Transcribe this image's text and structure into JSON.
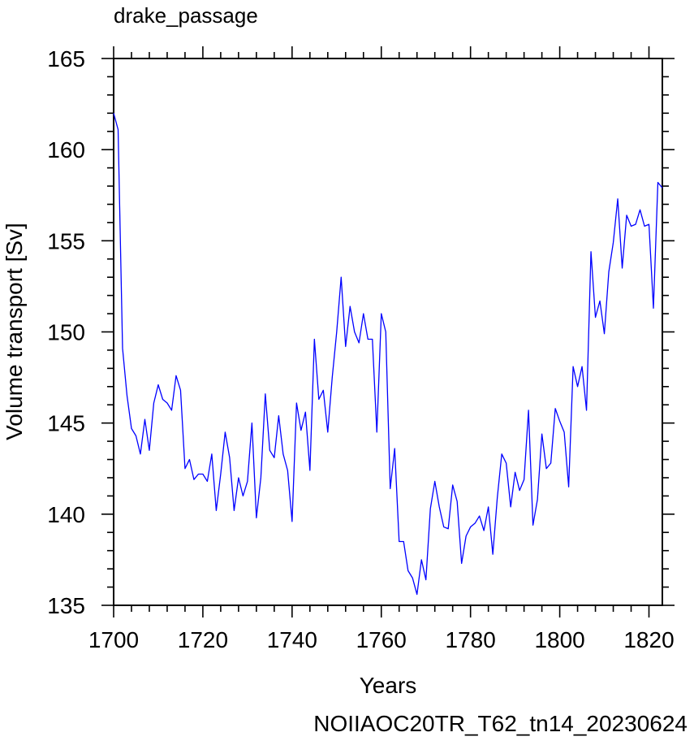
{
  "chart_data": {
    "type": "line",
    "title": "drake_passage",
    "xlabel": "Years",
    "ylabel": "Volume transport [Sv]",
    "xlim": [
      1700,
      1823
    ],
    "ylim": [
      135,
      165
    ],
    "x_ticks": [
      1700,
      1720,
      1740,
      1760,
      1780,
      1800,
      1820
    ],
    "x_tick_labels": [
      "1700",
      "1720",
      "1740",
      "1760",
      "1780",
      "1800",
      "1820"
    ],
    "y_ticks": [
      135,
      140,
      145,
      150,
      155,
      160,
      165
    ],
    "y_tick_labels": [
      "135",
      "140",
      "145",
      "150",
      "155",
      "160",
      "165"
    ],
    "grid": false,
    "series": [
      {
        "color": "#0000ff",
        "x": [
          1700,
          1701,
          1702,
          1703,
          1704,
          1705,
          1706,
          1707,
          1708,
          1709,
          1710,
          1711,
          1712,
          1713,
          1714,
          1715,
          1716,
          1717,
          1718,
          1719,
          1720,
          1721,
          1722,
          1723,
          1724,
          1725,
          1726,
          1727,
          1728,
          1729,
          1730,
          1731,
          1732,
          1733,
          1734,
          1735,
          1736,
          1737,
          1738,
          1739,
          1740,
          1741,
          1742,
          1743,
          1744,
          1745,
          1746,
          1747,
          1748,
          1749,
          1750,
          1751,
          1752,
          1753,
          1754,
          1755,
          1756,
          1757,
          1758,
          1759,
          1760,
          1761,
          1762,
          1763,
          1764,
          1765,
          1766,
          1767,
          1768,
          1769,
          1770,
          1771,
          1772,
          1773,
          1774,
          1775,
          1776,
          1777,
          1778,
          1779,
          1780,
          1781,
          1782,
          1783,
          1784,
          1785,
          1786,
          1787,
          1788,
          1789,
          1790,
          1791,
          1792,
          1793,
          1794,
          1795,
          1796,
          1797,
          1798,
          1799,
          1800,
          1801,
          1802,
          1803,
          1804,
          1805,
          1806,
          1807,
          1808,
          1809,
          1810,
          1811,
          1812,
          1813,
          1814,
          1815,
          1816,
          1817,
          1818,
          1819,
          1820,
          1821,
          1822,
          1823
        ],
        "y": [
          162.0,
          161.1,
          149.1,
          146.5,
          144.7,
          144.3,
          143.3,
          145.2,
          143.5,
          146.1,
          147.1,
          146.3,
          146.1,
          145.7,
          147.6,
          146.8,
          142.5,
          143.0,
          141.9,
          142.2,
          142.2,
          141.8,
          143.3,
          140.2,
          142.2,
          144.5,
          143.1,
          140.2,
          142.0,
          141.0,
          141.8,
          145.0,
          139.8,
          142.0,
          146.6,
          143.5,
          143.1,
          145.4,
          143.3,
          142.4,
          139.6,
          146.1,
          144.6,
          145.6,
          142.4,
          149.6,
          146.3,
          146.8,
          144.5,
          147.5,
          150.0,
          153.0,
          149.2,
          151.4,
          150.0,
          149.4,
          151.0,
          149.6,
          149.6,
          144.5,
          151.0,
          150.0,
          141.4,
          143.6,
          138.5,
          138.5,
          136.9,
          136.5,
          135.6,
          137.5,
          136.4,
          140.3,
          141.8,
          140.4,
          139.3,
          139.2,
          141.6,
          140.7,
          137.3,
          138.8,
          139.3,
          139.5,
          139.9,
          139.1,
          140.4,
          137.8,
          140.9,
          143.3,
          142.8,
          140.4,
          142.3,
          141.3,
          141.9,
          145.7,
          139.4,
          140.8,
          144.4,
          142.5,
          142.8,
          145.8,
          145.1,
          144.5,
          141.5,
          148.1,
          147.0,
          148.1,
          145.7,
          154.4,
          150.8,
          151.7,
          149.9,
          153.3,
          154.9,
          157.3,
          153.5,
          156.4,
          155.8,
          155.9,
          156.7,
          155.8,
          155.9,
          151.3,
          158.2,
          157.9
        ]
      }
    ]
  },
  "footer": {
    "case_name": "NOIIAOC20TR_T62_tn14_20230624",
    "case_color": "#0000ff"
  }
}
